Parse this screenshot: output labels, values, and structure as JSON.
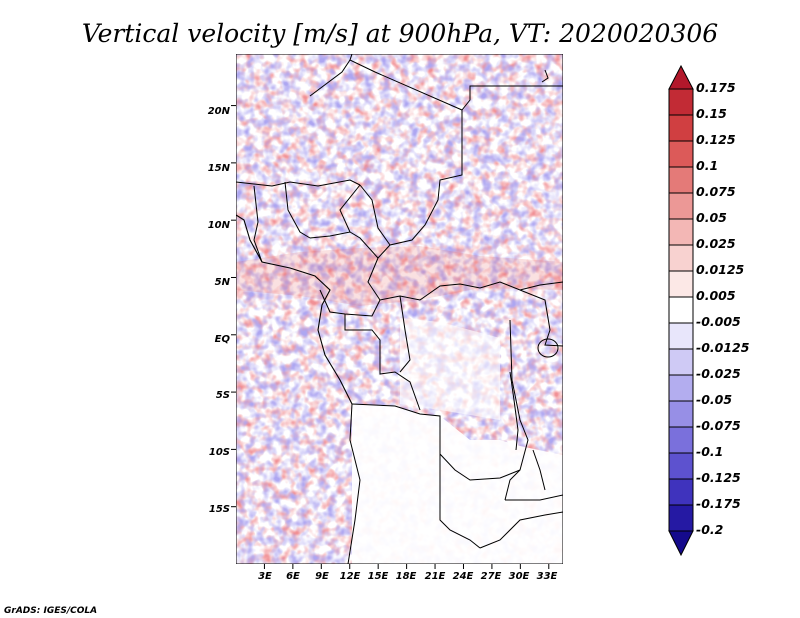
{
  "chart_data": {
    "type": "heatmap",
    "title": "Vertical velocity [m/s] at 900hPa, VT: 2020020306",
    "x_tick_labels": [
      "3E",
      "6E",
      "9E",
      "12E",
      "15E",
      "18E",
      "21E",
      "24E",
      "27E",
      "30E",
      "33E"
    ],
    "y_tick_labels": [
      "20N",
      "15N",
      "10N",
      "5N",
      "EQ",
      "5S",
      "10S",
      "15S"
    ],
    "x_values": [
      3,
      6,
      9,
      12,
      15,
      18,
      21,
      24,
      27,
      30,
      33
    ],
    "y_values": [
      20,
      15,
      10,
      5,
      0,
      -5,
      -10,
      -15
    ],
    "lon_range": [
      0,
      34.5
    ],
    "lat_range": [
      -20,
      24.5
    ],
    "colorbar": {
      "labels": [
        "0.175",
        "0.15",
        "0.125",
        "0.1",
        "0.075",
        "0.05",
        "0.025",
        "0.0125",
        "0.005",
        "-0.005",
        "-0.0125",
        "-0.025",
        "-0.05",
        "-0.075",
        "-0.1",
        "-0.125",
        "-0.175",
        "-0.2"
      ],
      "colors": [
        "#b2182b",
        "#c22b35",
        "#d03f41",
        "#dc5a59",
        "#e47a78",
        "#ec9896",
        "#f3b7b5",
        "#f8d2d0",
        "#fce8e6",
        "#ffffff",
        "#e8e6fb",
        "#cfcaf5",
        "#b3adef",
        "#978fe6",
        "#7a70dc",
        "#5d52cf",
        "#3f33bd",
        "#2519a3",
        "#150a8c"
      ]
    },
    "credit": "GrADS: IGES/COLA"
  }
}
